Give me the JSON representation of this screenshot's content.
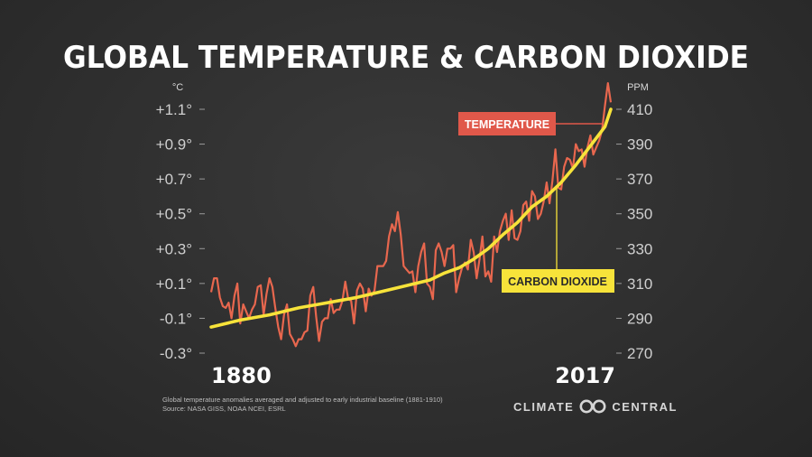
{
  "title": "GLOBAL TEMPERATURE & CARBON DIOXIDE",
  "footer": {
    "note": "Global temperature anomalies averaged and adjusted to early industrial baseline (1881-1910)",
    "source": "Source: NASA GISS, NOAA NCEI, ESRL"
  },
  "logo": {
    "left_word": "CLIMATE",
    "right_word": "CENTRAL"
  },
  "colors": {
    "temperature": "#e8674e",
    "co2": "#f7e33a",
    "temp_label_bg": "#e0584a",
    "co2_label_bg": "#f7e33a"
  },
  "chart_data": {
    "type": "line",
    "title": "GLOBAL TEMPERATURE & CARBON DIOXIDE",
    "x_start_label": "1880",
    "x_end_label": "2017",
    "x_range": [
      1880,
      2017
    ],
    "left_axis": {
      "unit": "°C",
      "range": [
        -0.3,
        1.1
      ],
      "ticks": [
        {
          "value": 1.1,
          "label": "+1.1°"
        },
        {
          "value": 0.9,
          "label": "+0.9°"
        },
        {
          "value": 0.7,
          "label": "+0.7°"
        },
        {
          "value": 0.5,
          "label": "+0.5°"
        },
        {
          "value": 0.3,
          "label": "+0.3°"
        },
        {
          "value": 0.1,
          "label": "+0.1°"
        },
        {
          "value": -0.1,
          "label": "-0.1°"
        },
        {
          "value": -0.3,
          "label": "-0.3°"
        }
      ]
    },
    "right_axis": {
      "unit": "PPM",
      "range": [
        270,
        410
      ],
      "ticks": [
        {
          "value": 410,
          "label": "410"
        },
        {
          "value": 390,
          "label": "390"
        },
        {
          "value": 370,
          "label": "370"
        },
        {
          "value": 350,
          "label": "350"
        },
        {
          "value": 330,
          "label": "330"
        },
        {
          "value": 310,
          "label": "310"
        },
        {
          "value": 290,
          "label": "290"
        },
        {
          "value": 270,
          "label": "270"
        }
      ]
    },
    "series": [
      {
        "name": "TEMPERATURE",
        "axis": "left",
        "x": [
          1880,
          1881,
          1882,
          1883,
          1884,
          1885,
          1886,
          1887,
          1888,
          1889,
          1890,
          1891,
          1892,
          1893,
          1894,
          1895,
          1896,
          1897,
          1898,
          1899,
          1900,
          1901,
          1902,
          1903,
          1904,
          1905,
          1906,
          1907,
          1908,
          1909,
          1910,
          1911,
          1912,
          1913,
          1914,
          1915,
          1916,
          1917,
          1918,
          1919,
          1920,
          1921,
          1922,
          1923,
          1924,
          1925,
          1926,
          1927,
          1928,
          1929,
          1930,
          1931,
          1932,
          1933,
          1934,
          1935,
          1936,
          1937,
          1938,
          1939,
          1940,
          1941,
          1942,
          1943,
          1944,
          1945,
          1946,
          1947,
          1948,
          1949,
          1950,
          1951,
          1952,
          1953,
          1954,
          1955,
          1956,
          1957,
          1958,
          1959,
          1960,
          1961,
          1962,
          1963,
          1964,
          1965,
          1966,
          1967,
          1968,
          1969,
          1970,
          1971,
          1972,
          1973,
          1974,
          1975,
          1976,
          1977,
          1978,
          1979,
          1980,
          1981,
          1982,
          1983,
          1984,
          1985,
          1986,
          1987,
          1988,
          1989,
          1990,
          1991,
          1992,
          1993,
          1994,
          1995,
          1996,
          1997,
          1998,
          1999,
          2000,
          2001,
          2002,
          2003,
          2004,
          2005,
          2006,
          2007,
          2008,
          2009,
          2010,
          2011,
          2012,
          2013,
          2014,
          2015,
          2016,
          2017
        ],
        "values": [
          0.05,
          0.13,
          0.13,
          0.02,
          -0.03,
          -0.04,
          -0.01,
          -0.1,
          0.03,
          0.1,
          -0.13,
          -0.02,
          -0.06,
          -0.1,
          -0.05,
          -0.02,
          0.08,
          0.09,
          -0.08,
          0.04,
          0.13,
          0.08,
          -0.04,
          -0.15,
          -0.22,
          -0.08,
          -0.02,
          -0.19,
          -0.22,
          -0.26,
          -0.22,
          -0.22,
          -0.18,
          -0.17,
          0.03,
          0.08,
          -0.09,
          -0.23,
          -0.12,
          -0.1,
          -0.1,
          0.01,
          -0.07,
          -0.05,
          -0.05,
          0.0,
          0.11,
          0.01,
          0.0,
          -0.13,
          0.06,
          0.1,
          0.07,
          -0.06,
          0.07,
          0.03,
          0.06,
          0.2,
          0.2,
          0.2,
          0.23,
          0.37,
          0.44,
          0.4,
          0.51,
          0.38,
          0.2,
          0.18,
          0.16,
          0.17,
          0.05,
          0.2,
          0.28,
          0.33,
          0.1,
          0.08,
          0.01,
          0.29,
          0.33,
          0.28,
          0.2,
          0.3,
          0.3,
          0.32,
          0.05,
          0.13,
          0.19,
          0.22,
          0.18,
          0.35,
          0.28,
          0.13,
          0.24,
          0.37,
          0.14,
          0.17,
          0.11,
          0.37,
          0.28,
          0.4,
          0.46,
          0.5,
          0.35,
          0.52,
          0.36,
          0.35,
          0.4,
          0.55,
          0.57,
          0.46,
          0.63,
          0.6,
          0.47,
          0.5,
          0.57,
          0.68,
          0.56,
          0.69,
          0.87,
          0.65,
          0.64,
          0.77,
          0.82,
          0.81,
          0.76,
          0.9,
          0.86,
          0.87,
          0.77,
          0.88,
          0.95,
          0.84,
          0.88,
          0.92,
          0.98,
          1.12,
          1.25,
          1.14
        ]
      },
      {
        "name": "CARBON DIOXIDE",
        "axis": "right",
        "x": [
          1880,
          1890,
          1900,
          1910,
          1920,
          1930,
          1940,
          1950,
          1955,
          1960,
          1965,
          1970,
          1975,
          1980,
          1985,
          1990,
          1995,
          2000,
          2005,
          2010,
          2015,
          2017
        ],
        "values": [
          285,
          289,
          292,
          296,
          299,
          302,
          306,
          310,
          312,
          316,
          319,
          324,
          330,
          338,
          345,
          354,
          360,
          368,
          378,
          389,
          400,
          410
        ]
      }
    ],
    "annotations": [
      {
        "text": "TEMPERATURE",
        "series": "TEMPERATURE"
      },
      {
        "text": "CARBON DIOXIDE",
        "series": "CARBON DIOXIDE"
      }
    ]
  }
}
